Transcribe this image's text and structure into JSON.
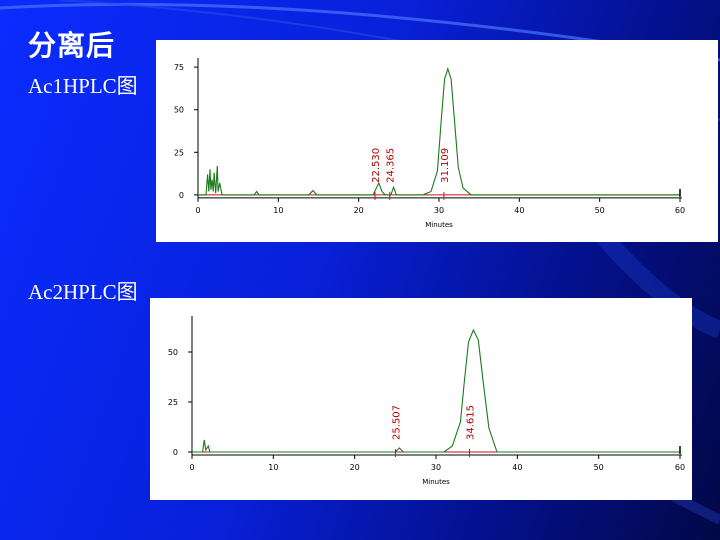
{
  "slide": {
    "title": "分离后",
    "label1": "Ac1HPLC图",
    "label2": "Ac2HPLC图"
  },
  "colors": {
    "trace": "#1a7a1a",
    "baseline": "#cc1111",
    "peak_label": "#b00000"
  },
  "chart_data": [
    {
      "type": "line",
      "xlabel": "Minutes",
      "ylabel": "",
      "xlim": [
        0,
        60
      ],
      "ylim": [
        -3,
        78
      ],
      "x_ticks": [
        0,
        10,
        20,
        30,
        40,
        50,
        60
      ],
      "y_ticks": [
        0,
        25,
        50,
        75
      ],
      "peak_labels": [
        "22.530",
        "24.365",
        "31.109"
      ],
      "peak_label_x": [
        22.53,
        24.365,
        31.109
      ],
      "series": [
        {
          "x": [
            0,
            1.0,
            1.2,
            1.35,
            1.5,
            1.6,
            1.75,
            1.9,
            2.0,
            2.2,
            2.4,
            2.5,
            2.7,
            3.0,
            7.0,
            7.3,
            7.6,
            13.8,
            14.3,
            14.8,
            21.8,
            22.2,
            22.5,
            22.9,
            23.3,
            24.0,
            24.35,
            24.7,
            25.0,
            28.0,
            29.0,
            29.8,
            30.3,
            30.7,
            31.1,
            31.5,
            31.9,
            32.4,
            33.0,
            34.0,
            60.0
          ],
          "y": [
            0,
            0,
            12,
            2,
            15,
            3,
            9,
            2,
            13,
            1,
            17,
            2,
            7,
            0,
            0,
            2,
            0,
            0,
            2.5,
            0,
            0,
            4,
            7,
            2,
            0,
            0,
            4.5,
            0,
            0,
            0,
            2,
            14,
            45,
            68,
            74,
            68,
            45,
            16,
            4,
            0,
            0
          ]
        }
      ]
    },
    {
      "type": "line",
      "xlabel": "Minutes",
      "ylabel": "",
      "xlim": [
        0,
        60
      ],
      "ylim": [
        -3,
        66
      ],
      "x_ticks": [
        0,
        10,
        20,
        30,
        40,
        50,
        60
      ],
      "y_ticks": [
        0,
        25,
        50
      ],
      "peak_labels": [
        "25.507",
        "34.615"
      ],
      "peak_label_x": [
        25.507,
        34.615
      ],
      "series": [
        {
          "x": [
            0,
            1.3,
            1.5,
            1.7,
            2.0,
            2.2,
            2.4,
            13.0,
            25.0,
            25.5,
            26.0,
            31.0,
            32.0,
            33.0,
            33.5,
            34.0,
            34.6,
            35.2,
            35.8,
            36.5,
            37.5,
            60.0
          ],
          "y": [
            0,
            0,
            6,
            1,
            3,
            0,
            0,
            0,
            0,
            2,
            0,
            0,
            3,
            15,
            36,
            55,
            61,
            56,
            35,
            12,
            0,
            0
          ]
        }
      ]
    }
  ]
}
